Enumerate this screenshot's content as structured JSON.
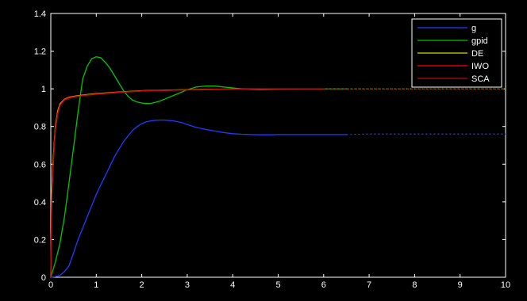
{
  "chart_data": {
    "type": "line",
    "title": "",
    "xlabel": "",
    "ylabel": "",
    "xlim": [
      0,
      10
    ],
    "ylim": [
      0,
      1.4
    ],
    "xticks": [
      "0",
      "1",
      "2",
      "3",
      "4",
      "5",
      "6",
      "7",
      "8",
      "9",
      "10"
    ],
    "yticks": [
      "0",
      "0.2",
      "0.4",
      "0.6",
      "0.8",
      "1",
      "1.2",
      "1.4"
    ],
    "grid": false,
    "legend_position": "top-right",
    "series": [
      {
        "name": "g",
        "color": "#1f3cff",
        "style": "solid-then-dotted",
        "dotted_from": 6.5,
        "x": [
          0,
          0.1,
          0.2,
          0.3,
          0.4,
          0.5,
          0.6,
          0.7,
          0.8,
          0.9,
          1.0,
          1.1,
          1.2,
          1.3,
          1.4,
          1.5,
          1.6,
          1.7,
          1.8,
          1.9,
          2.0,
          2.1,
          2.2,
          2.3,
          2.4,
          2.5,
          2.6,
          2.7,
          2.8,
          2.9,
          3.0,
          3.2,
          3.4,
          3.6,
          3.8,
          4.0,
          4.2,
          4.4,
          4.6,
          4.8,
          5.0,
          5.5,
          6.0,
          6.5,
          7.0,
          8.0,
          9.0,
          10.0
        ],
        "y": [
          0,
          0.003,
          0.01,
          0.03,
          0.06,
          0.13,
          0.2,
          0.26,
          0.32,
          0.38,
          0.44,
          0.49,
          0.54,
          0.59,
          0.64,
          0.68,
          0.72,
          0.75,
          0.78,
          0.8,
          0.815,
          0.825,
          0.83,
          0.833,
          0.834,
          0.834,
          0.832,
          0.83,
          0.825,
          0.82,
          0.81,
          0.795,
          0.785,
          0.776,
          0.768,
          0.762,
          0.759,
          0.757,
          0.756,
          0.756,
          0.757,
          0.757,
          0.757,
          0.757,
          0.76,
          0.76,
          0.76,
          0.76
        ]
      },
      {
        "name": "gpid",
        "color": "#00c800",
        "style": "solid-then-dotted",
        "dotted_from": 6.5,
        "x": [
          0,
          0.1,
          0.2,
          0.3,
          0.4,
          0.5,
          0.6,
          0.7,
          0.8,
          0.9,
          1.0,
          1.1,
          1.2,
          1.3,
          1.4,
          1.5,
          1.6,
          1.7,
          1.8,
          1.9,
          2.0,
          2.1,
          2.2,
          2.3,
          2.4,
          2.5,
          2.6,
          2.8,
          3.0,
          3.2,
          3.4,
          3.6,
          3.8,
          4.0,
          4.2,
          4.4,
          4.6,
          4.8,
          5.0,
          5.5,
          6.0,
          6.5,
          7.0,
          8.0,
          9.0,
          10.0
        ],
        "y": [
          0,
          0.08,
          0.18,
          0.32,
          0.5,
          0.69,
          0.88,
          1.05,
          1.12,
          1.16,
          1.17,
          1.165,
          1.14,
          1.11,
          1.07,
          1.03,
          0.99,
          0.96,
          0.94,
          0.93,
          0.925,
          0.922,
          0.923,
          0.928,
          0.935,
          0.945,
          0.955,
          0.975,
          0.995,
          1.01,
          1.015,
          1.015,
          1.01,
          1.005,
          1.0,
          0.997,
          0.996,
          0.997,
          0.998,
          1.0,
          1.0,
          1.0,
          1.0,
          1.0,
          1.0,
          1.0
        ]
      },
      {
        "name": "DE",
        "color": "#e0d800",
        "style": "solid-then-dotted",
        "dotted_from": 6.5,
        "x": [
          0,
          0.02,
          0.05,
          0.1,
          0.15,
          0.2,
          0.3,
          0.4,
          0.5,
          0.7,
          1.0,
          1.5,
          2.0,
          3.0,
          4.0,
          5.0,
          6.0,
          7.0,
          8.0,
          9.0,
          10.0
        ],
        "y": [
          0,
          0.45,
          0.62,
          0.8,
          0.88,
          0.92,
          0.945,
          0.955,
          0.96,
          0.967,
          0.975,
          0.983,
          0.99,
          0.996,
          0.999,
          1.0,
          1.0,
          1.0,
          1.0,
          1.0,
          1.0
        ]
      },
      {
        "name": "IWO",
        "color": "#ff0000",
        "style": "solid-then-dotted",
        "dotted_from": 6.5,
        "x": [
          0,
          0.02,
          0.05,
          0.1,
          0.15,
          0.2,
          0.3,
          0.4,
          0.5,
          0.7,
          1.0,
          1.5,
          2.0,
          3.0,
          4.0,
          5.0,
          6.0,
          7.0,
          8.0,
          9.0,
          10.0
        ],
        "y": [
          0,
          0.42,
          0.6,
          0.79,
          0.87,
          0.915,
          0.943,
          0.953,
          0.958,
          0.965,
          0.973,
          0.982,
          0.989,
          0.995,
          0.999,
          1.0,
          1.0,
          1.0,
          1.0,
          1.0,
          1.0
        ]
      },
      {
        "name": "SCA",
        "color": "#b01010",
        "style": "solid-then-dotted",
        "dotted_from": 6.5,
        "x": [
          0,
          0.02,
          0.05,
          0.1,
          0.15,
          0.2,
          0.3,
          0.4,
          0.5,
          0.7,
          1.0,
          1.5,
          2.0,
          3.0,
          4.0,
          5.0,
          6.0,
          7.0,
          8.0,
          9.0,
          10.0
        ],
        "y": [
          0,
          0.4,
          0.58,
          0.78,
          0.86,
          0.91,
          0.94,
          0.95,
          0.956,
          0.963,
          0.971,
          0.98,
          0.988,
          0.994,
          0.998,
          1.0,
          1.0,
          1.0,
          1.0,
          1.0,
          1.0
        ]
      }
    ]
  }
}
